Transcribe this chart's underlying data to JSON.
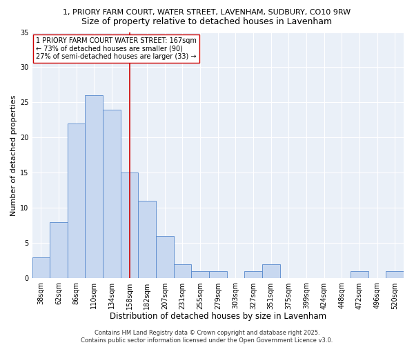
{
  "title1": "1, PRIORY FARM COURT, WATER STREET, LAVENHAM, SUDBURY, CO10 9RW",
  "title2": "Size of property relative to detached houses in Lavenham",
  "xlabel": "Distribution of detached houses by size in Lavenham",
  "ylabel": "Number of detached properties",
  "categories": [
    "38sqm",
    "62sqm",
    "86sqm",
    "110sqm",
    "134sqm",
    "158sqm",
    "182sqm",
    "207sqm",
    "231sqm",
    "255sqm",
    "279sqm",
    "303sqm",
    "327sqm",
    "351sqm",
    "375sqm",
    "399sqm",
    "424sqm",
    "448sqm",
    "472sqm",
    "496sqm",
    "520sqm"
  ],
  "values": [
    3,
    8,
    22,
    26,
    24,
    15,
    11,
    6,
    2,
    1,
    1,
    0,
    1,
    2,
    0,
    0,
    0,
    0,
    1,
    0,
    1
  ],
  "bar_color": "#c8d8f0",
  "bar_edge_color": "#5588cc",
  "vline_x": 5.0,
  "vline_color": "#cc0000",
  "annotation_text": "1 PRIORY FARM COURT WATER STREET: 167sqm\n← 73% of detached houses are smaller (90)\n27% of semi-detached houses are larger (33) →",
  "annotation_box_color": "#ffffff",
  "annotation_box_edge": "#cc0000",
  "ylim": [
    0,
    35
  ],
  "yticks": [
    0,
    5,
    10,
    15,
    20,
    25,
    30,
    35
  ],
  "bg_color": "#eaf0f8",
  "footer": "Contains HM Land Registry data © Crown copyright and database right 2025.\nContains public sector information licensed under the Open Government Licence v3.0.",
  "title1_fontsize": 8.0,
  "title2_fontsize": 9.0,
  "xlabel_fontsize": 8.5,
  "ylabel_fontsize": 8.0,
  "tick_fontsize": 7.0,
  "annotation_fontsize": 7.0,
  "footer_fontsize": 6.0
}
